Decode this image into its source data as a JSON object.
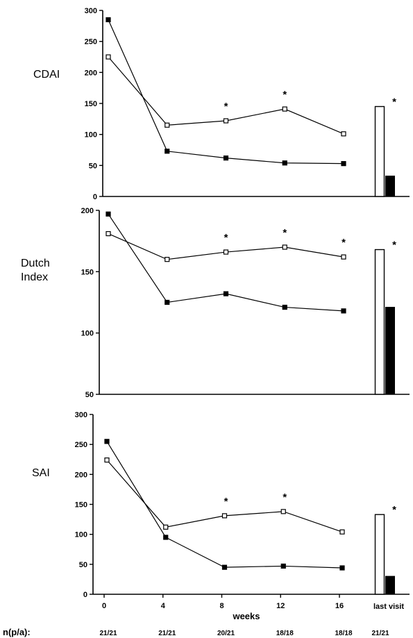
{
  "chart_data": [
    {
      "type": "line",
      "title": "CDAI",
      "ylim": [
        0,
        300
      ],
      "yticks": [
        "0",
        "50",
        "100",
        "150",
        "200",
        "250",
        "300"
      ],
      "x": [
        0,
        4,
        8,
        12,
        16
      ],
      "series": [
        {
          "marker": "filled-square",
          "values": [
            285,
            73,
            62,
            54,
            53
          ]
        },
        {
          "marker": "open-square",
          "values": [
            225,
            115,
            122,
            141,
            101
          ]
        }
      ],
      "significant": [
        8,
        12
      ],
      "last_visit": {
        "open": 145,
        "filled": 33,
        "significant": true
      }
    },
    {
      "type": "line",
      "title": "Dutch\nIndex",
      "ylim": [
        50,
        200
      ],
      "yticks": [
        "50",
        "100",
        "150",
        "200"
      ],
      "x": [
        0,
        4,
        8,
        12,
        16
      ],
      "series": [
        {
          "marker": "filled-square",
          "values": [
            197,
            125,
            132,
            121,
            118
          ]
        },
        {
          "marker": "open-square",
          "values": [
            181,
            160,
            166,
            170,
            162
          ]
        }
      ],
      "significant": [
        8,
        12,
        16
      ],
      "last_visit": {
        "open": 168,
        "filled": 121,
        "significant": true
      }
    },
    {
      "type": "line",
      "title": "SAI",
      "ylim": [
        0,
        300
      ],
      "yticks": [
        "0",
        "50",
        "100",
        "150",
        "200",
        "250",
        "300"
      ],
      "x": [
        0,
        4,
        8,
        12,
        16
      ],
      "series": [
        {
          "marker": "filled-square",
          "values": [
            255,
            95,
            45,
            47,
            44
          ]
        },
        {
          "marker": "open-square",
          "values": [
            224,
            112,
            131,
            138,
            104
          ]
        }
      ],
      "significant": [
        8,
        12
      ],
      "last_visit": {
        "open": 133,
        "filled": 30,
        "significant": true
      }
    }
  ],
  "x_axis": {
    "ticks": [
      "0",
      "4",
      "8",
      "12",
      "16"
    ],
    "label": "weeks",
    "last_visit_label": "last visit"
  },
  "n_row": {
    "label": "n(p/a):",
    "values": [
      "21/21",
      "21/21",
      "20/21",
      "18/18",
      "18/18",
      "21/21"
    ]
  },
  "significance_marker": "*"
}
